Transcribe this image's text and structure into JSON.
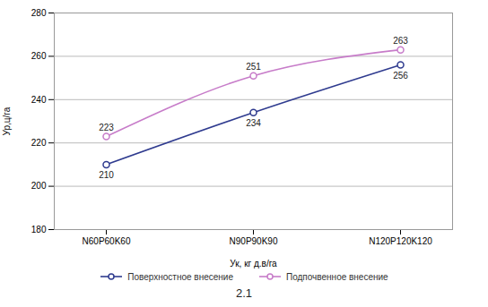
{
  "chart_data": {
    "type": "line",
    "x_label": "Ук, кг д.в/га",
    "y_label": "Ур,ц/га",
    "caption": "2.1",
    "categories": [
      "N60P60K60",
      "N90P90K90",
      "N120P120K120"
    ],
    "series": [
      {
        "name": "Поверхностное внесение",
        "color": "#2f3b8f",
        "values": [
          210,
          234,
          256
        ],
        "marker": "circle",
        "line_style": "solid"
      },
      {
        "name": "Подпочвенное внесение",
        "color": "#c77cc9",
        "values": [
          223,
          251,
          263
        ],
        "marker": "circle",
        "line_style": "solid"
      }
    ],
    "ylim": [
      180,
      280
    ],
    "yticks": [
      180,
      200,
      220,
      240,
      260,
      280
    ],
    "grid": true,
    "data_labels": true,
    "legend": "bottom"
  }
}
